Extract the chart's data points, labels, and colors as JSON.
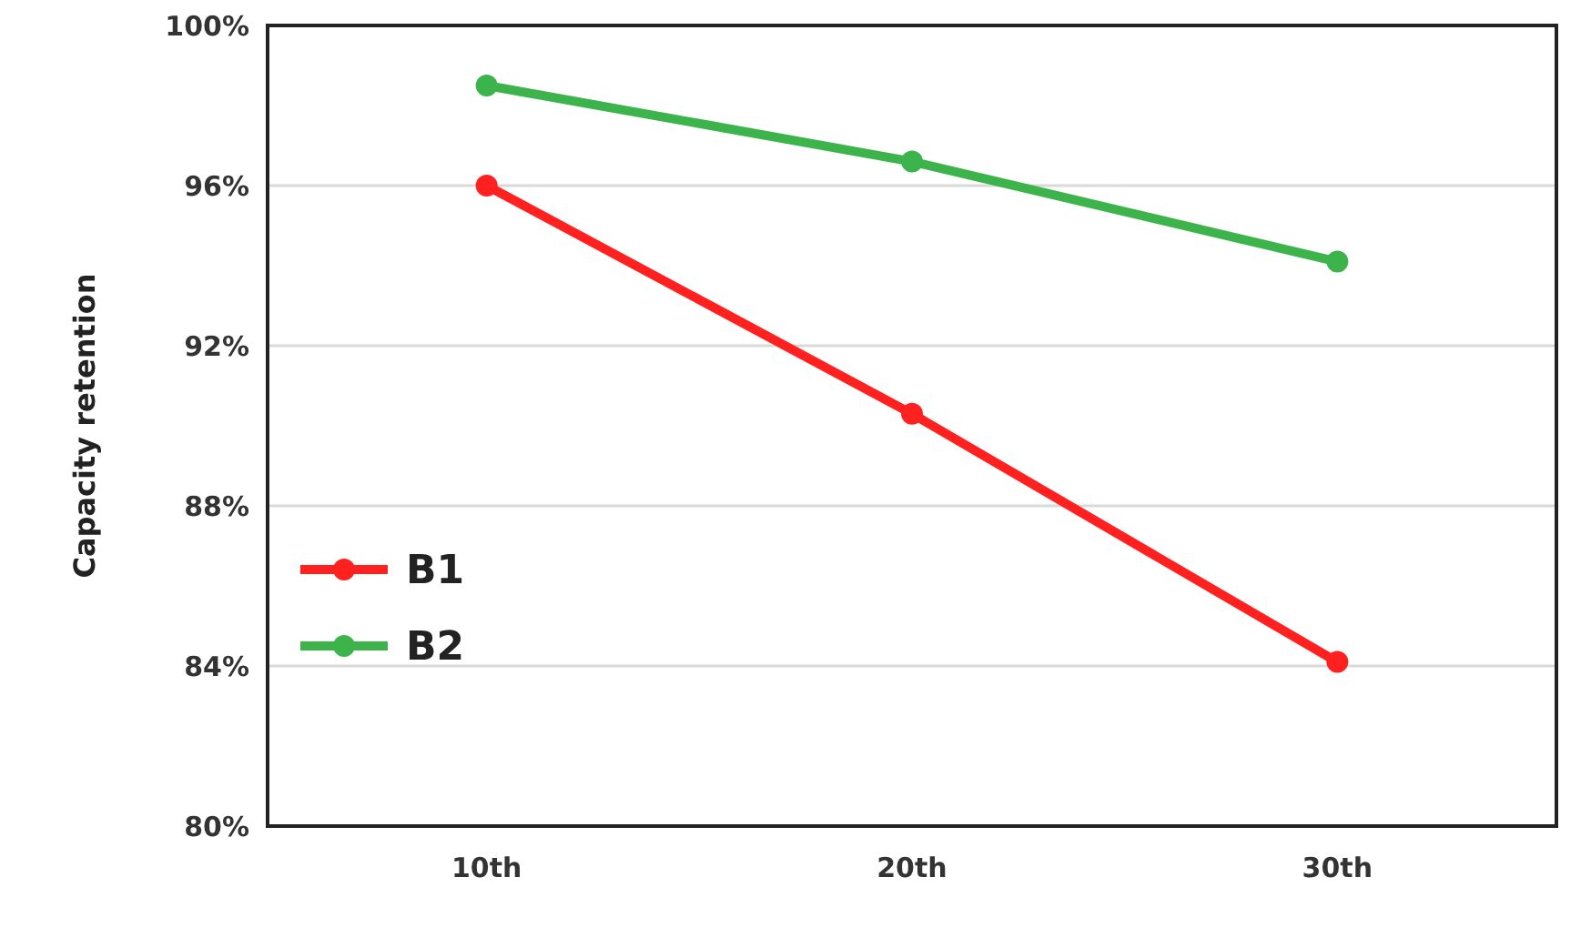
{
  "chart_data": {
    "type": "line",
    "ylabel": "Capacity retention",
    "categories": [
      "10th",
      "20th",
      "30th"
    ],
    "series": [
      {
        "name": "B1",
        "color": "#ff2020",
        "values": [
          96.0,
          90.3,
          84.1
        ]
      },
      {
        "name": "B2",
        "color": "#3cb44b",
        "values": [
          98.5,
          96.6,
          94.1
        ]
      }
    ],
    "ylim": [
      80,
      100
    ],
    "yticks": [
      {
        "value": 80,
        "label": "80%"
      },
      {
        "value": 84,
        "label": "84%"
      },
      {
        "value": 88,
        "label": "88%"
      },
      {
        "value": 92,
        "label": "92%"
      },
      {
        "value": 96,
        "label": "96%"
      },
      {
        "value": 100,
        "label": "100%"
      }
    ],
    "grid": "y",
    "legend": "left",
    "marker": "circle",
    "line_style": "solid"
  }
}
